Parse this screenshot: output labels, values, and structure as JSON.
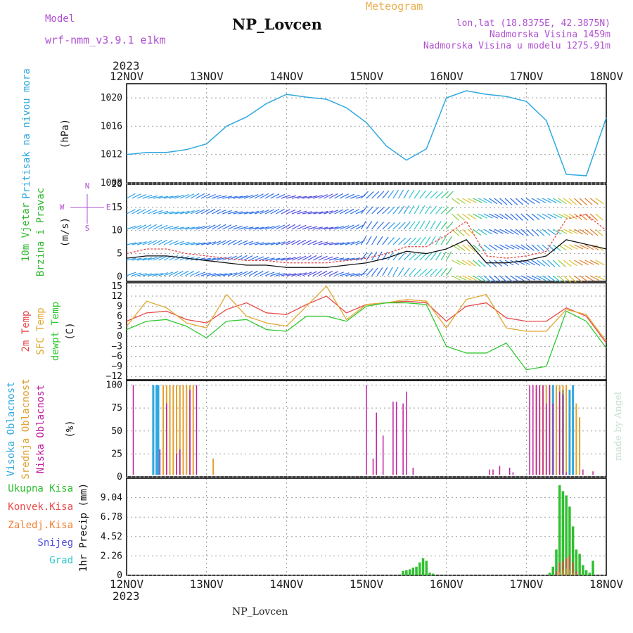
{
  "header": {
    "model_label": "Model",
    "model_name": "wrf-nmm_v3.9.1 e1km",
    "station": "NP_Lovcen",
    "product": "Meteogram",
    "coords": "lon,lat (18.8375E, 42.3875N)",
    "elevation": "Nadmorska Visina 1459m",
    "model_elevation": "Nadmorska Visina u modelu 1275.91m",
    "year_top": "2023",
    "year_bottom": "2023",
    "footer_station": "NP_Lovcen",
    "credit": "made by Angel"
  },
  "colors": {
    "pressure": "#30a8e0",
    "wind_label": "#30b830",
    "t2m": "#e84848",
    "tsfc": "#e0a830",
    "dewpt": "#30c830",
    "cloud_high": "#30a8e0",
    "cloud_mid": "#e0a030",
    "cloud_low": "#c020a0",
    "precip_total": "#30c030",
    "precip_conv": "#e84848",
    "precip_frozen": "#f08030",
    "precip_snow": "#5050e0",
    "precip_hail": "#30c8c8",
    "dir_label": "#b050d0"
  },
  "chart_data": [
    {
      "type": "line",
      "name": "pressure",
      "ylabels": [
        "Pritisak na nivou mora",
        "(hPa)"
      ],
      "x_ticks": [
        "12NOV",
        "13NOV",
        "14NOV",
        "15NOV",
        "16NOV",
        "17NOV",
        "18NOV"
      ],
      "ylim": [
        1008,
        1022
      ],
      "yticks": [
        1008,
        1012,
        1016,
        1020
      ],
      "grid": true,
      "x_hours": [
        0,
        6,
        12,
        18,
        24,
        30,
        36,
        42,
        48,
        54,
        60,
        66,
        72,
        78,
        84,
        90,
        96,
        102,
        108,
        114,
        120,
        126,
        132,
        138,
        144
      ],
      "values": [
        1012.0,
        1012.3,
        1012.3,
        1012.7,
        1013.5,
        1016.0,
        1017.3,
        1019.2,
        1020.5,
        1020.1,
        1019.8,
        1018.6,
        1016.5,
        1013.2,
        1011.2,
        1012.8,
        1020.0,
        1021.0,
        1020.5,
        1020.2,
        1019.5,
        1016.8,
        1009.2,
        1009.0,
        1017.2
      ]
    },
    {
      "type": "line",
      "name": "wind",
      "ylabels": [
        "10m Vjetar",
        "Brzina i Pravac",
        "(m/s)"
      ],
      "direction_key": [
        "N",
        "W",
        "E",
        "S"
      ],
      "ylim": [
        -1,
        20
      ],
      "yticks": [
        0,
        5,
        10,
        15,
        20
      ],
      "grid": true,
      "x_hours": [
        0,
        6,
        12,
        18,
        24,
        30,
        36,
        42,
        48,
        54,
        60,
        66,
        72,
        78,
        84,
        90,
        96,
        102,
        108,
        114,
        120,
        126,
        132,
        138,
        144
      ],
      "series": [
        {
          "values": [
            4.0,
            4.5,
            4.5,
            4.0,
            3.5,
            3.0,
            2.5,
            2.5,
            2.0,
            2.0,
            2.0,
            2.5,
            3.0,
            4.0,
            5.5,
            5.0,
            6.0,
            8.0,
            3.0,
            3.0,
            3.5,
            4.5,
            8.0,
            7.0,
            6.0
          ]
        },
        {
          "values": [
            5.0,
            6.0,
            6.0,
            5.0,
            4.5,
            4.0,
            3.5,
            3.5,
            3.0,
            3.0,
            3.0,
            3.5,
            4.0,
            5.0,
            6.5,
            6.5,
            9.0,
            12.0,
            4.5,
            4.0,
            4.5,
            5.5,
            12.5,
            13.5,
            10.0
          ]
        }
      ]
    },
    {
      "type": "line",
      "name": "temperature",
      "ylabels": [
        "2m Temp",
        "SFC Temp",
        "dewpt Temp",
        "(C)"
      ],
      "ylim": [
        -13,
        16
      ],
      "yticks": [
        -12,
        -9,
        -6,
        -3,
        0,
        3,
        6,
        9,
        12,
        15
      ],
      "grid": true,
      "x_hours": [
        0,
        6,
        12,
        18,
        24,
        30,
        36,
        42,
        48,
        54,
        60,
        66,
        72,
        78,
        84,
        90,
        96,
        102,
        108,
        114,
        120,
        126,
        132,
        138,
        144
      ],
      "series": [
        {
          "name": "2m Temp",
          "values": [
            4.5,
            7.0,
            7.5,
            5.0,
            4.0,
            8.0,
            10.0,
            7.0,
            6.5,
            9.5,
            12.0,
            7.0,
            9.5,
            10.0,
            10.5,
            10.0,
            4.5,
            9.0,
            10.0,
            5.5,
            4.5,
            4.5,
            8.5,
            6.0,
            -2.0
          ]
        },
        {
          "name": "SFC Temp",
          "values": [
            3.0,
            10.5,
            8.5,
            4.0,
            2.5,
            12.5,
            6.0,
            4.0,
            3.0,
            9.0,
            15.0,
            5.0,
            9.5,
            10.0,
            11.0,
            10.5,
            2.5,
            11.0,
            12.5,
            2.5,
            1.5,
            1.5,
            8.0,
            6.5,
            -1.5
          ]
        },
        {
          "name": "dewpt Temp",
          "values": [
            2.0,
            4.5,
            5.0,
            3.0,
            -0.5,
            4.5,
            5.0,
            2.0,
            1.5,
            6.0,
            6.0,
            4.5,
            9.0,
            10.0,
            10.0,
            9.5,
            -3.0,
            -5.0,
            -5.0,
            -2.0,
            -10.0,
            -9.0,
            7.5,
            4.5,
            -3.5
          ]
        }
      ]
    },
    {
      "type": "bar",
      "name": "clouds",
      "ylabels": [
        "Visoka Oblacnost",
        "Srednja Oblacnost",
        "Niska Oblacnost",
        "(%)"
      ],
      "ylim": [
        0,
        105
      ],
      "yticks": [
        0,
        25,
        50,
        75,
        100
      ],
      "grid": true,
      "series": [
        {
          "name": "Visoka Oblacnost",
          "x_hours": [
            8,
            9,
            9.5,
            128,
            131,
            133,
            134
          ],
          "values": [
            100,
            100,
            100,
            100,
            95,
            95,
            100
          ]
        },
        {
          "name": "Srednja Oblacnost",
          "x_hours": [
            11,
            12,
            13,
            14,
            15,
            16,
            17,
            18,
            19,
            20,
            26,
            123,
            124,
            125,
            126,
            127,
            129,
            130,
            131,
            132,
            135,
            136
          ],
          "values": [
            100,
            100,
            100,
            100,
            100,
            100,
            100,
            100,
            100,
            100,
            20,
            100,
            100,
            100,
            100,
            100,
            100,
            100,
            100,
            100,
            80,
            65
          ]
        },
        {
          "name": "Niska Oblacnost",
          "x_hours": [
            2,
            10,
            12,
            15,
            16,
            19,
            21,
            72,
            74,
            75,
            77,
            80,
            81,
            83,
            84,
            86,
            109,
            110,
            112,
            115,
            116,
            118,
            121,
            122,
            123,
            124,
            125,
            126,
            127,
            128,
            130,
            131,
            132,
            137,
            140
          ],
          "values": [
            100,
            30,
            80,
            25,
            30,
            95,
            100,
            100,
            20,
            70,
            45,
            82,
            82,
            80,
            93,
            10,
            8,
            8,
            12,
            10,
            5,
            2,
            100,
            100,
            100,
            100,
            100,
            80,
            100,
            80,
            93,
            90,
            5,
            8,
            6
          ]
        }
      ]
    },
    {
      "type": "bar",
      "name": "precip",
      "ylabels": [
        "Ukupna Kisa",
        "Konvek.Kisa",
        "Zaledj.Kisa",
        "Snijeg",
        "Grad",
        "1hr Precip (mm)"
      ],
      "x_ticks": [
        "12NOV",
        "13NOV",
        "14NOV",
        "15NOV",
        "16NOV",
        "17NOV",
        "18NOV"
      ],
      "ylim": [
        0,
        11.3
      ],
      "yticks": [
        0,
        2.26,
        4.52,
        6.78,
        9.04
      ],
      "ytick_labels": [
        "0",
        "2.26",
        "4.52",
        "6.78",
        "9.04"
      ],
      "grid": true,
      "series": [
        {
          "name": "Ukupna Kisa",
          "x_hours": [
            83,
            84,
            85,
            86,
            87,
            88,
            89,
            90,
            91,
            92,
            127,
            128,
            129,
            130,
            131,
            132,
            133,
            134,
            135,
            136,
            137,
            138,
            139,
            140
          ],
          "values": [
            0.5,
            0.6,
            0.7,
            0.9,
            1.0,
            1.5,
            2.0,
            1.7,
            0.3,
            0.2,
            0.3,
            1.0,
            3.0,
            10.5,
            9.8,
            9.3,
            8.0,
            5.7,
            3.0,
            2.5,
            1.2,
            0.6,
            0.3,
            1.7
          ]
        },
        {
          "name": "Konvek.Kisa",
          "x_hours": [
            129,
            130,
            131,
            132,
            133,
            134,
            135
          ],
          "values": [
            0.5,
            1.5,
            1.7,
            2.0,
            2.3,
            1.5,
            0.5
          ]
        },
        {
          "name": "Zaledj.Kisa",
          "x_hours": [
            130,
            131,
            132,
            133,
            134
          ],
          "values": [
            0.4,
            0.6,
            0.8,
            0.7,
            0.3
          ]
        },
        {
          "name": "Snijeg",
          "x_hours": [],
          "values": []
        },
        {
          "name": "Grad",
          "x_hours": [],
          "values": []
        }
      ]
    }
  ]
}
